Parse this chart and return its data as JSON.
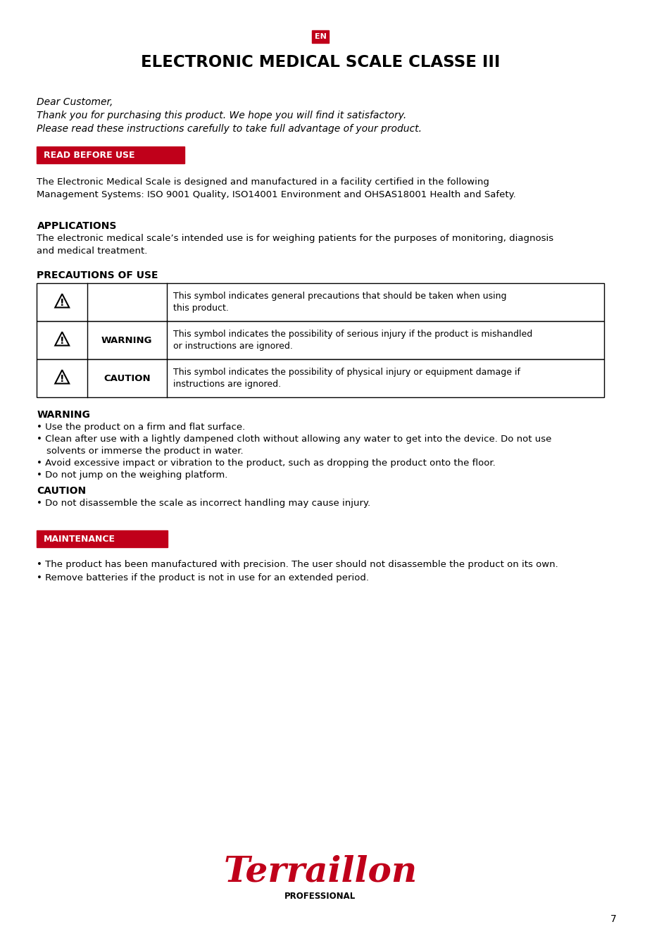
{
  "bg_color": "#ffffff",
  "red_color": "#c0001a",
  "black_color": "#000000",
  "white_color": "#ffffff",
  "page_number": "7",
  "en_label": "EN",
  "title": "ELECTRONIC MEDICAL SCALE CLASSE III",
  "dear_customer": "Dear Customer,",
  "intro_line2": "Thank you for purchasing this product. We hope you will find it satisfactory.",
  "intro_line3": "Please read these instructions carefully to take full advantage of your product.",
  "section1_label": "READ BEFORE USE",
  "section1_body": "The Electronic Medical Scale is designed and manufactured in a facility certified in the following\nManagement Systems: ISO 9001 Quality, ISO14001 Environment and OHSAS18001 Health and Safety.",
  "applications_title": "APPLICATIONS",
  "applications_body": "The electronic medical scale’s intended use is for weighing patients for the purposes of monitoring, diagnosis\nand medical treatment.",
  "precautions_title": "PRECAUTIONS OF USE",
  "table_rows": [
    {
      "label": "",
      "description": "This symbol indicates general precautions that should be taken when using\nthis product."
    },
    {
      "label": "WARNING",
      "description": "This symbol indicates the possibility of serious injury if the product is mishandled\nor instructions are ignored."
    },
    {
      "label": "CAUTION",
      "description": "This symbol indicates the possibility of physical injury or equipment damage if\ninstructions are ignored."
    }
  ],
  "warning_title": "WARNING",
  "warning_bullets": [
    "Use the product on a firm and flat surface.",
    "Clean after use with a lightly dampened cloth without allowing any water to get into the device. Do not use\n   solvents or immerse the product in water.",
    "Avoid excessive impact or vibration to the product, such as dropping the product onto the floor.",
    "Do not jump on the weighing platform."
  ],
  "caution_title": "CAUTION",
  "caution_bullets": [
    "Do not disassemble the scale as incorrect handling may cause injury."
  ],
  "section2_label": "MAINTENANCE",
  "maintenance_bullets": [
    "The product has been manufactured with precision. The user should not disassemble the product on its own.",
    "Remove batteries if the product is not in use for an extended period."
  ],
  "logo_text": "Terraillon",
  "logo_sub": "PROFESSIONAL"
}
